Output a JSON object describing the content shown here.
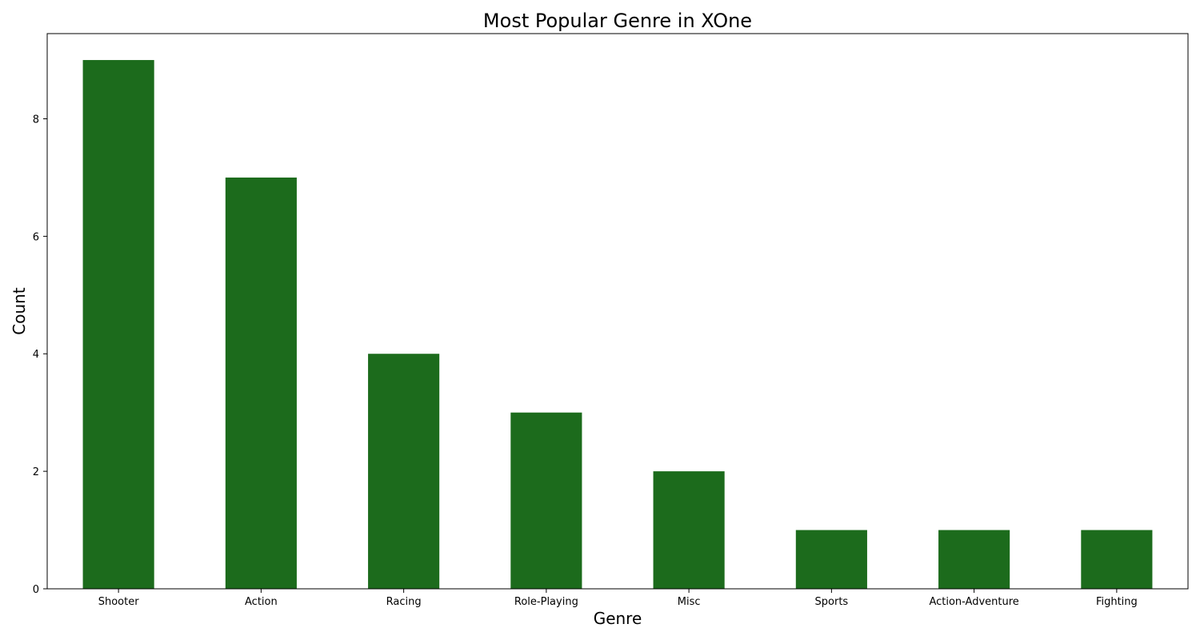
{
  "chart_data": {
    "type": "bar",
    "title": "Most Popular Genre in XOne",
    "xlabel": "Genre",
    "ylabel": "Count",
    "categories": [
      "Shooter",
      "Action",
      "Racing",
      "Role-Playing",
      "Misc",
      "Sports",
      "Action-Adventure",
      "Fighting"
    ],
    "values": [
      9,
      7,
      4,
      3,
      2,
      1,
      1,
      1
    ],
    "ylim": [
      0,
      9.45
    ],
    "yticks": [
      0,
      2,
      4,
      6,
      8
    ],
    "bar_color": "#1c6b1c",
    "grid": false,
    "legend": "none"
  }
}
